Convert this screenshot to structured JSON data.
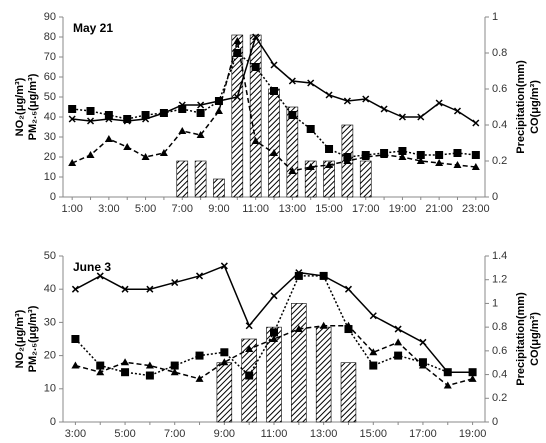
{
  "chart_data": [
    {
      "type": "combo",
      "title": "May 21",
      "categories": [
        "1:00",
        null,
        "3:00",
        null,
        "5:00",
        null,
        "7:00",
        null,
        "9:00",
        null,
        "11:00",
        null,
        "13:00",
        null,
        "15:00",
        null,
        "17:00",
        null,
        "19:00",
        null,
        "21:00",
        null,
        "23:00"
      ],
      "ylabel": [
        "NO₂(μg/m³)",
        "PM₂.₅(μg/m³)"
      ],
      "y2label": [
        "Precipitation(mm)",
        "CO(μg/m³)"
      ],
      "ylim": [
        0,
        90
      ],
      "yticks": [
        0,
        10,
        20,
        30,
        40,
        50,
        60,
        70,
        80,
        90
      ],
      "y2lim": [
        0,
        1
      ],
      "y2ticks": [
        0,
        0.2,
        0.4,
        0.6,
        0.8,
        1
      ],
      "series": [
        {
          "kind": "bar",
          "axis": "y2",
          "color": "#000000",
          "values": [
            0,
            0,
            0,
            0,
            0,
            0,
            0.2,
            0.2,
            0.1,
            0.9,
            0.9,
            0.6,
            0.5,
            0.2,
            0.2,
            0.4,
            0.2,
            0,
            0,
            0,
            0,
            0,
            0
          ]
        },
        {
          "kind": "line",
          "marker": "x",
          "dash": "solid",
          "color": "#000000",
          "values": [
            39,
            38,
            39,
            38,
            39,
            42,
            46,
            46,
            48,
            50,
            80,
            66,
            58,
            57,
            51,
            48,
            49,
            44,
            40,
            40,
            47,
            43,
            37
          ]
        },
        {
          "kind": "line",
          "marker": "square",
          "dash": "dotted",
          "color": "#000000",
          "values": [
            44,
            43,
            41,
            39,
            41,
            42,
            44,
            42,
            48,
            72,
            65,
            53,
            41,
            34,
            24,
            20,
            21,
            22,
            23,
            21,
            21,
            22,
            21
          ]
        },
        {
          "kind": "line",
          "marker": "triangle",
          "dash": "dashed",
          "color": "#000000",
          "values": [
            17,
            21,
            29,
            25,
            20,
            22,
            33,
            31,
            43,
            78,
            28,
            22,
            13,
            15,
            16,
            18,
            20,
            21,
            20,
            18,
            17,
            16,
            15
          ]
        }
      ]
    },
    {
      "type": "combo",
      "title": "June 3",
      "categories": [
        "3:00",
        null,
        "5:00",
        null,
        "7:00",
        null,
        "9:00",
        null,
        "11:00",
        null,
        "13:00",
        null,
        "15:00",
        null,
        "17:00",
        null,
        "19:00"
      ],
      "ylabel": [
        "NO₂(μg/m³)",
        "PM₂.₅(μg/m³)"
      ],
      "y2label": [
        "Precipitation(mm)",
        "CO(μg/m³)"
      ],
      "ylim": [
        0,
        50
      ],
      "yticks": [
        0,
        10,
        20,
        30,
        40,
        50
      ],
      "y2lim": [
        0,
        1.4
      ],
      "y2ticks": [
        0,
        0.2,
        0.4,
        0.6,
        0.8,
        1,
        1.2,
        1.4
      ],
      "series": [
        {
          "kind": "bar",
          "axis": "y2",
          "color": "#000000",
          "values": [
            0,
            0,
            0,
            0,
            0,
            0,
            0.5,
            0.7,
            0.8,
            1,
            0.8,
            0.5,
            0,
            0,
            0,
            0,
            0
          ]
        },
        {
          "kind": "line",
          "marker": "x",
          "dash": "solid",
          "color": "#000000",
          "values": [
            40,
            44,
            40,
            40,
            42,
            44,
            47,
            29,
            38,
            45,
            44,
            40,
            32,
            28,
            24,
            15,
            15
          ]
        },
        {
          "kind": "line",
          "marker": "square",
          "dash": "dotted",
          "color": "#000000",
          "values": [
            25,
            17,
            15,
            14,
            17,
            20,
            21,
            14,
            27,
            44,
            44,
            28,
            17,
            20,
            18,
            15,
            15
          ]
        },
        {
          "kind": "line",
          "marker": "triangle",
          "dash": "dashed",
          "color": "#000000",
          "values": [
            17,
            15,
            18,
            17,
            15,
            13,
            18,
            22,
            25,
            28,
            29,
            29,
            21,
            24,
            17,
            11,
            13
          ]
        }
      ]
    }
  ]
}
